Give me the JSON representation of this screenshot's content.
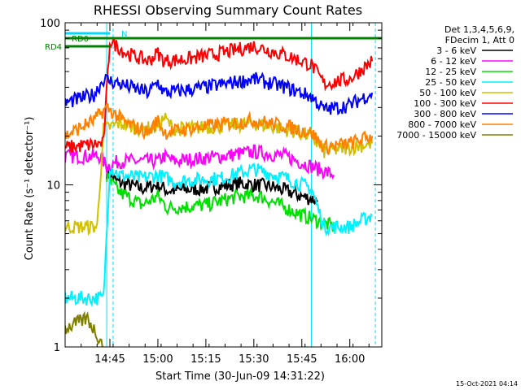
{
  "chart_data": {
    "type": "line",
    "title": "RHESSI Observing Summary Count Rates",
    "xlabel": "Start Time (30-Jun-09 14:31:22)",
    "ylabel": "Count Rate (s⁻¹ detector⁻¹)",
    "y_scale": "log",
    "ylim": [
      1,
      100
    ],
    "y_ticks": [
      "1",
      "10",
      "100"
    ],
    "x_start": "14:31",
    "x_end": "16:10",
    "x_ticks": [
      "14:45",
      "15:00",
      "15:15",
      "15:30",
      "15:45",
      "16:00"
    ],
    "legend_header": [
      "Det 1,3,4,5,6,9,",
      "FDecim 1, Att 0"
    ],
    "legend_position": "right",
    "flags": [
      {
        "label": "RD0",
        "color": "#008000",
        "start": "14:31",
        "end": "16:10"
      },
      {
        "label": "RD4",
        "color": "#008000",
        "start": "14:31",
        "end": "14:45"
      },
      {
        "label": "N",
        "color": "#00d8ff",
        "start": "14:31",
        "end": "14:45"
      }
    ],
    "night_boundaries": [
      "14:44",
      "14:46",
      "15:48",
      "16:08"
    ],
    "timestamp": "15-Oct-2021 04:14",
    "series": [
      {
        "name": "3 - 6 keV",
        "color": "#000000",
        "start": "14:44",
        "points": [
          [
            "14:44",
            12
          ],
          [
            "14:47",
            10.5
          ],
          [
            "14:55",
            9.5
          ],
          [
            "15:00",
            10
          ],
          [
            "15:03",
            9.2
          ],
          [
            "15:15",
            9.5
          ],
          [
            "15:25",
            10.2
          ],
          [
            "15:35",
            9.8
          ],
          [
            "15:40",
            9.2
          ],
          [
            "15:45",
            8.5
          ],
          [
            "15:50",
            8
          ]
        ]
      },
      {
        "name": "6 - 12 keV",
        "color": "#ff00ff",
        "start": "14:31",
        "points": [
          [
            "14:31",
            15
          ],
          [
            "14:42",
            15
          ],
          [
            "14:44",
            13
          ],
          [
            "14:48",
            14
          ],
          [
            "15:00",
            14
          ],
          [
            "15:02",
            15
          ],
          [
            "15:05",
            14
          ],
          [
            "15:20",
            15
          ],
          [
            "15:30",
            16
          ],
          [
            "15:40",
            15
          ],
          [
            "15:48",
            13
          ],
          [
            "15:55",
            11.5
          ]
        ]
      },
      {
        "name": "12 - 25 keV",
        "color": "#00e000",
        "start": "14:44",
        "points": [
          [
            "14:44",
            11
          ],
          [
            "14:48",
            9
          ],
          [
            "14:55",
            7.5
          ],
          [
            "15:00",
            8.5
          ],
          [
            "15:03",
            7.2
          ],
          [
            "15:15",
            7.5
          ],
          [
            "15:25",
            8.5
          ],
          [
            "15:32",
            8.5
          ],
          [
            "15:38",
            7.5
          ],
          [
            "15:45",
            6.5
          ],
          [
            "15:50",
            6
          ],
          [
            "15:55",
            5.5
          ]
        ]
      },
      {
        "name": "25 - 50 keV",
        "color": "#00f0ff",
        "start": "14:31",
        "points": [
          [
            "14:31",
            2
          ],
          [
            "14:43",
            2
          ],
          [
            "14:45",
            13
          ],
          [
            "14:48",
            11.5
          ],
          [
            "14:55",
            11
          ],
          [
            "15:00",
            11.5
          ],
          [
            "15:05",
            10.5
          ],
          [
            "15:20",
            11
          ],
          [
            "15:30",
            12.5
          ],
          [
            "15:40",
            11
          ],
          [
            "15:48",
            9.5
          ],
          [
            "15:52",
            5.5
          ],
          [
            "16:00",
            5.5
          ],
          [
            "16:07",
            6.5
          ]
        ]
      },
      {
        "name": "50 - 100 keV",
        "color": "#d0c000",
        "start": "14:31",
        "points": [
          [
            "14:31",
            5.5
          ],
          [
            "14:41",
            5.5
          ],
          [
            "14:43",
            22
          ],
          [
            "14:48",
            24
          ],
          [
            "14:55",
            22
          ],
          [
            "15:00",
            23
          ],
          [
            "15:02",
            26
          ],
          [
            "15:05",
            22
          ],
          [
            "15:20",
            23
          ],
          [
            "15:30",
            24
          ],
          [
            "15:40",
            22
          ],
          [
            "15:48",
            20
          ],
          [
            "15:52",
            16
          ],
          [
            "16:00",
            17
          ],
          [
            "16:07",
            18
          ]
        ]
      },
      {
        "name": "100 - 300 keV",
        "color": "#ff0000",
        "start": "14:31",
        "points": [
          [
            "14:31",
            17
          ],
          [
            "14:43",
            18
          ],
          [
            "14:45",
            78
          ],
          [
            "14:50",
            65
          ],
          [
            "14:57",
            58
          ],
          [
            "15:00",
            65
          ],
          [
            "15:02",
            58
          ],
          [
            "15:10",
            60
          ],
          [
            "15:20",
            65
          ],
          [
            "15:30",
            72
          ],
          [
            "15:40",
            63
          ],
          [
            "15:48",
            55
          ],
          [
            "15:52",
            42
          ],
          [
            "16:00",
            45
          ],
          [
            "16:07",
            58
          ]
        ]
      },
      {
        "name": "300 - 800 keV",
        "color": "#0000ff",
        "start": "14:31",
        "points": [
          [
            "14:31",
            32
          ],
          [
            "14:40",
            36
          ],
          [
            "14:43",
            45
          ],
          [
            "14:48",
            42
          ],
          [
            "14:57",
            37
          ],
          [
            "15:00",
            43
          ],
          [
            "15:02",
            37
          ],
          [
            "15:15",
            40
          ],
          [
            "15:30",
            45
          ],
          [
            "15:40",
            40
          ],
          [
            "15:48",
            35
          ],
          [
            "15:52",
            29
          ],
          [
            "16:00",
            31
          ],
          [
            "16:07",
            37
          ]
        ]
      },
      {
        "name": "800 - 7000 keV",
        "color": "#ff8000",
        "start": "14:31",
        "points": [
          [
            "14:31",
            20
          ],
          [
            "14:40",
            25
          ],
          [
            "14:44",
            30
          ],
          [
            "14:50",
            24
          ],
          [
            "14:57",
            21
          ],
          [
            "15:00",
            25
          ],
          [
            "15:02",
            21
          ],
          [
            "15:15",
            23
          ],
          [
            "15:30",
            25
          ],
          [
            "15:40",
            23
          ],
          [
            "15:48",
            21
          ],
          [
            "15:52",
            17
          ],
          [
            "16:00",
            18
          ],
          [
            "16:07",
            20
          ]
        ]
      },
      {
        "name": "7000 - 15000 keV",
        "color": "#808000",
        "start": "14:31",
        "points": [
          [
            "14:31",
            1.3
          ],
          [
            "14:38",
            1.5
          ],
          [
            "14:42",
            1.1
          ],
          [
            "14:43",
            1
          ]
        ]
      }
    ]
  }
}
